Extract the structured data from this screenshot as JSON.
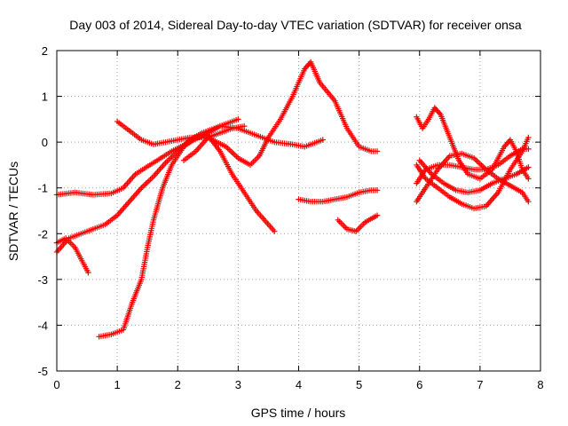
{
  "chart_data": {
    "type": "scatter",
    "title": "Day 003 of 2014, Sidereal Day-to-day VTEC variation (SDTVAR) for receiver onsa",
    "xlabel": "GPS time / hours",
    "ylabel": "SDTVAR / TECUs",
    "xlim": [
      0,
      8
    ],
    "ylim": [
      -5,
      2
    ],
    "xticks": [
      "0",
      "1",
      "2",
      "3",
      "4",
      "5",
      "6",
      "7",
      "8"
    ],
    "yticks": [
      "-5",
      "-4",
      "-3",
      "-2",
      "-1",
      "0",
      "1",
      "2"
    ],
    "grid": true,
    "marker": "plus",
    "color": "#ff0000",
    "series": [
      {
        "points": [
          [
            0.0,
            -1.15
          ],
          [
            0.3,
            -1.1
          ],
          [
            0.6,
            -1.15
          ],
          [
            0.9,
            -1.12
          ],
          [
            1.1,
            -1.0
          ],
          [
            1.3,
            -0.7
          ],
          [
            1.6,
            -0.45
          ],
          [
            1.9,
            -0.2
          ],
          [
            2.2,
            0.0
          ],
          [
            2.5,
            0.2
          ],
          [
            2.7,
            0.35
          ],
          [
            3.0,
            0.3
          ],
          [
            3.3,
            0.15
          ],
          [
            3.6,
            0.0
          ],
          [
            3.9,
            -0.05
          ],
          [
            4.1,
            -0.1
          ],
          [
            4.4,
            0.05
          ]
        ]
      },
      {
        "points": [
          [
            0.0,
            -2.4
          ],
          [
            0.2,
            -2.1
          ],
          [
            0.5,
            -1.95
          ],
          [
            0.8,
            -1.8
          ],
          [
            1.0,
            -1.6
          ],
          [
            1.2,
            -1.3
          ],
          [
            1.4,
            -1.0
          ],
          [
            1.6,
            -0.75
          ],
          [
            1.8,
            -0.45
          ],
          [
            2.0,
            -0.2
          ],
          [
            2.2,
            0.05
          ],
          [
            2.4,
            0.2
          ],
          [
            2.6,
            0.3
          ],
          [
            2.8,
            0.4
          ],
          [
            3.0,
            0.5
          ]
        ]
      },
      {
        "points": [
          [
            0.0,
            -2.2
          ],
          [
            0.15,
            -2.1
          ],
          [
            0.3,
            -2.3
          ],
          [
            0.4,
            -2.55
          ],
          [
            0.52,
            -2.85
          ]
        ]
      },
      {
        "points": [
          [
            0.7,
            -4.25
          ],
          [
            0.9,
            -4.2
          ],
          [
            1.1,
            -4.1
          ],
          [
            1.25,
            -3.5
          ],
          [
            1.4,
            -3.0
          ],
          [
            1.5,
            -2.3
          ],
          [
            1.6,
            -1.7
          ],
          [
            1.75,
            -1.0
          ],
          [
            1.9,
            -0.5
          ],
          [
            2.1,
            -0.1
          ],
          [
            2.3,
            0.1
          ],
          [
            2.5,
            0.15
          ],
          [
            2.7,
            -0.2
          ],
          [
            2.9,
            -0.7
          ],
          [
            3.1,
            -1.1
          ],
          [
            3.3,
            -1.5
          ],
          [
            3.6,
            -1.95
          ]
        ]
      },
      {
        "points": [
          [
            1.0,
            0.45
          ],
          [
            1.2,
            0.25
          ],
          [
            1.4,
            0.05
          ],
          [
            1.6,
            -0.05
          ],
          [
            1.8,
            0.0
          ],
          [
            2.0,
            0.05
          ],
          [
            2.2,
            0.1
          ],
          [
            2.5,
            0.1
          ],
          [
            2.8,
            -0.1
          ],
          [
            3.0,
            -0.35
          ],
          [
            3.2,
            -0.5
          ],
          [
            3.35,
            -0.3
          ],
          [
            3.5,
            0.1
          ],
          [
            3.7,
            0.5
          ],
          [
            3.9,
            1.0
          ],
          [
            4.1,
            1.6
          ],
          [
            4.2,
            1.75
          ],
          [
            4.35,
            1.3
          ],
          [
            4.6,
            0.9
          ],
          [
            4.8,
            0.3
          ],
          [
            5.0,
            -0.1
          ],
          [
            5.2,
            -0.2
          ],
          [
            5.3,
            -0.2
          ]
        ]
      },
      {
        "points": [
          [
            2.1,
            -0.4
          ],
          [
            2.3,
            -0.2
          ],
          [
            2.5,
            0.1
          ],
          [
            2.7,
            0.2
          ],
          [
            2.9,
            0.3
          ],
          [
            3.1,
            0.35
          ]
        ]
      },
      {
        "points": [
          [
            4.0,
            -1.25
          ],
          [
            4.2,
            -1.3
          ],
          [
            4.4,
            -1.3
          ],
          [
            4.6,
            -1.25
          ],
          [
            4.8,
            -1.2
          ],
          [
            5.0,
            -1.1
          ],
          [
            5.2,
            -1.05
          ],
          [
            5.3,
            -1.05
          ]
        ]
      },
      {
        "points": [
          [
            4.65,
            -1.7
          ],
          [
            4.8,
            -1.9
          ],
          [
            4.95,
            -1.95
          ],
          [
            5.1,
            -1.75
          ],
          [
            5.3,
            -1.6
          ]
        ]
      },
      {
        "points": [
          [
            5.95,
            0.55
          ],
          [
            6.05,
            0.3
          ],
          [
            6.15,
            0.5
          ],
          [
            6.25,
            0.75
          ],
          [
            6.35,
            0.6
          ],
          [
            6.5,
            0.1
          ],
          [
            6.65,
            -0.4
          ],
          [
            6.8,
            -0.7
          ],
          [
            7.0,
            -0.8
          ],
          [
            7.2,
            -0.6
          ],
          [
            7.4,
            -0.1
          ],
          [
            7.5,
            0.05
          ],
          [
            7.6,
            -0.2
          ],
          [
            7.7,
            -0.6
          ],
          [
            7.8,
            -0.8
          ]
        ]
      },
      {
        "points": [
          [
            5.95,
            -0.5
          ],
          [
            6.1,
            -0.8
          ],
          [
            6.3,
            -1.0
          ],
          [
            6.5,
            -1.2
          ],
          [
            6.7,
            -1.35
          ],
          [
            6.9,
            -1.45
          ],
          [
            7.1,
            -1.4
          ],
          [
            7.3,
            -1.1
          ],
          [
            7.5,
            -0.6
          ],
          [
            7.7,
            -0.2
          ],
          [
            7.8,
            0.1
          ]
        ]
      },
      {
        "points": [
          [
            5.95,
            -0.9
          ],
          [
            6.1,
            -0.6
          ],
          [
            6.3,
            -0.5
          ],
          [
            6.5,
            -0.5
          ],
          [
            6.7,
            -0.55
          ],
          [
            6.9,
            -0.6
          ],
          [
            7.1,
            -0.6
          ],
          [
            7.3,
            -0.5
          ],
          [
            7.5,
            -0.3
          ],
          [
            7.7,
            -0.15
          ],
          [
            7.8,
            -0.15
          ]
        ]
      },
      {
        "points": [
          [
            5.95,
            -1.3
          ],
          [
            6.1,
            -1.0
          ],
          [
            6.3,
            -0.6
          ],
          [
            6.5,
            -0.3
          ],
          [
            6.7,
            -0.25
          ],
          [
            6.9,
            -0.35
          ],
          [
            7.1,
            -0.6
          ],
          [
            7.3,
            -0.8
          ],
          [
            7.5,
            -0.95
          ],
          [
            7.7,
            -1.1
          ],
          [
            7.8,
            -1.3
          ]
        ]
      },
      {
        "points": [
          [
            6.0,
            -0.4
          ],
          [
            6.2,
            -0.7
          ],
          [
            6.4,
            -0.9
          ],
          [
            6.6,
            -1.05
          ],
          [
            6.8,
            -1.1
          ],
          [
            7.0,
            -1.05
          ],
          [
            7.2,
            -0.9
          ],
          [
            7.4,
            -0.8
          ],
          [
            7.6,
            -0.7
          ],
          [
            7.8,
            -0.55
          ]
        ]
      }
    ]
  }
}
